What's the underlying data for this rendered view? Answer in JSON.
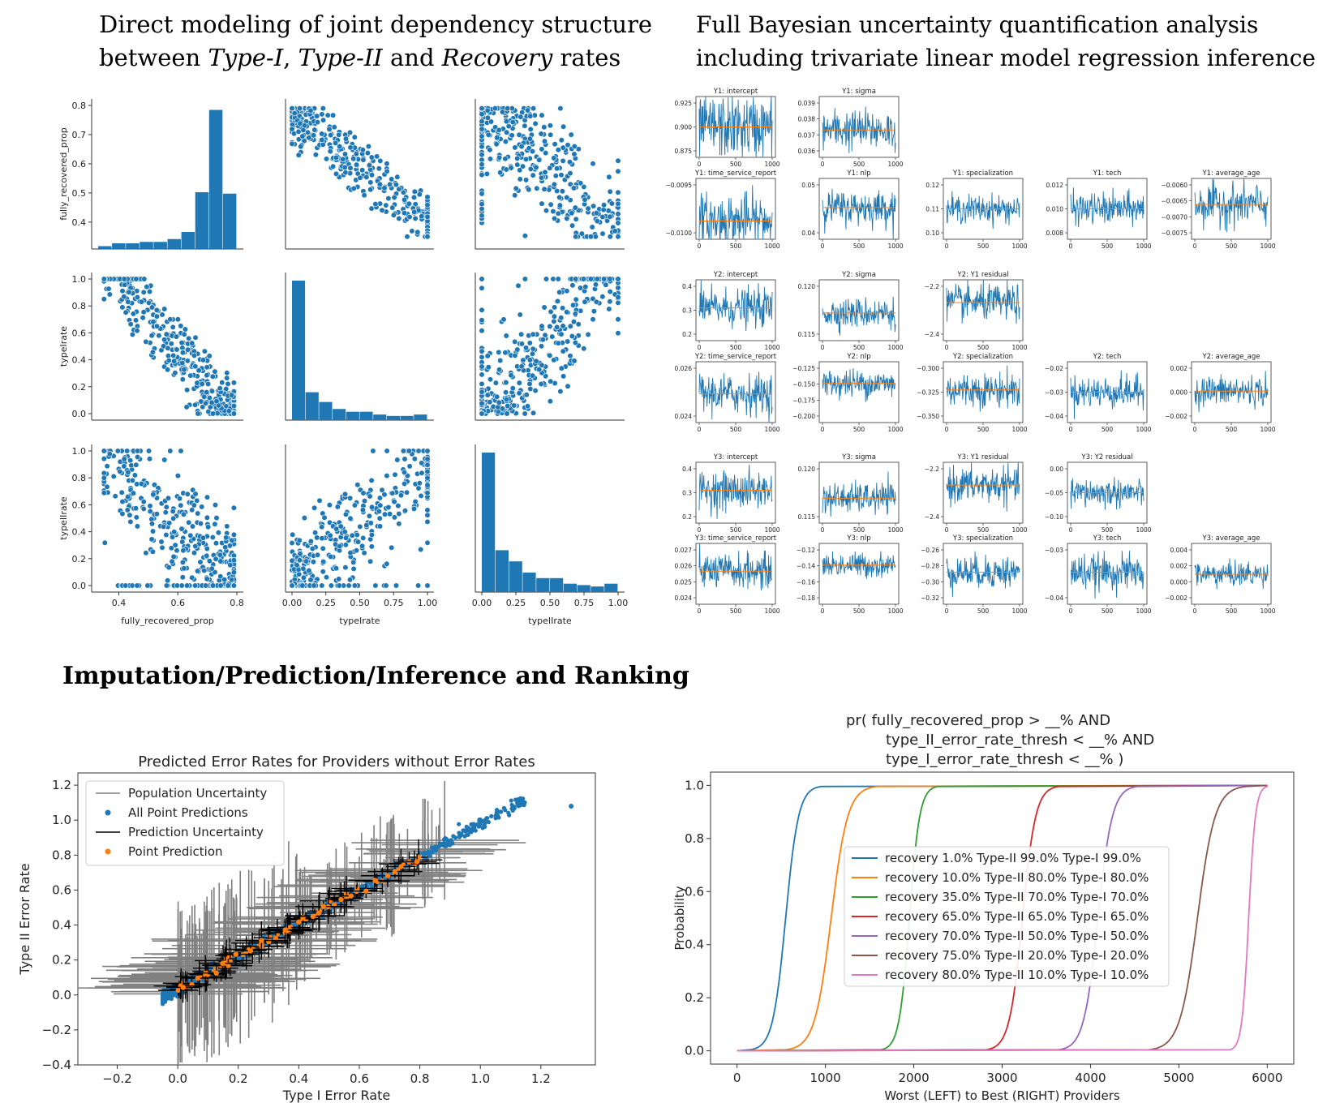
{
  "headings": {
    "top_left_line1": "Direct modeling of joint dependency structure",
    "top_left_line2_a": "between ",
    "top_left_line2_b": "Type-I",
    "top_left_line2_c": ", ",
    "top_left_line2_d": "Type-II",
    "top_left_line2_e": " and ",
    "top_left_line2_f": "Recovery",
    "top_left_line2_g": " rates",
    "top_right_line1": "Full Bayesian uncertainty quantification analysis",
    "top_right_line2": "including trivariate linear model regression inference",
    "bottom": "Imputation/Prediction/Inference and Ranking"
  },
  "colors": {
    "blue": "#1f77b4",
    "orange": "#ff7f0e",
    "green": "#2ca02c",
    "red": "#d62728",
    "purple": "#9467bd",
    "brown": "#8c564b",
    "pink": "#e377c2",
    "gray": "#808080",
    "black": "#000000"
  },
  "chart_data": [
    {
      "id": "pairplot",
      "type": "scatter",
      "variables": [
        "fully_recovered_prop",
        "typeIrate",
        "typeIIrate"
      ],
      "xlabels": [
        "fully_recovered_prop",
        "typeIrate",
        "typeIIrate"
      ],
      "ylabels": [
        "fully_recovered_prop",
        "typeIrate",
        "typeIIrate"
      ],
      "diag_type": "hist",
      "ranges": [
        [
          0.33,
          0.8
        ],
        [
          0,
          1.0
        ],
        [
          0,
          1.0
        ]
      ],
      "ticks": [
        [
          "0.4",
          "0.5",
          "0.6",
          "0.7",
          "0.8"
        ],
        [
          "0.0",
          "0.2",
          "0.4",
          "0.6",
          "0.8",
          "1.0"
        ],
        [
          "0.0",
          "0.2",
          "0.4",
          "0.6",
          "0.8",
          "1.0"
        ]
      ],
      "xticks": [
        [
          "0.4",
          "0.6",
          "0.8"
        ],
        [
          "0.00",
          "0.25",
          "0.50",
          "0.75",
          "1.00"
        ],
        [
          "0.00",
          "0.25",
          "0.50",
          "0.75",
          "1.00"
        ]
      ],
      "hist_recovered": [
        0.02,
        0.04,
        0.04,
        0.05,
        0.05,
        0.07,
        0.12,
        0.4,
        0.98,
        0.39
      ],
      "hist_type1": [
        1.0,
        0.2,
        0.13,
        0.08,
        0.06,
        0.06,
        0.04,
        0.03,
        0.03,
        0.04
      ],
      "hist_type2": [
        1.0,
        0.3,
        0.22,
        0.14,
        0.1,
        0.1,
        0.06,
        0.05,
        0.04,
        0.06
      ]
    },
    {
      "id": "trace_plots",
      "type": "line",
      "x_ticks": [
        "0",
        "500",
        "1000"
      ],
      "groups": [
        {
          "row1": [
            {
              "title": "Y1: intercept",
              "yticks": [
                "0.925",
                "0.900",
                "0.875"
              ],
              "center": 0.9,
              "spread": 0.045,
              "ylim": [
                0.86,
                0.94
              ]
            },
            {
              "title": "Y1: sigma",
              "yticks": [
                "0.039",
                "0.038",
                "0.037",
                "0.036"
              ],
              "center": 0.0373,
              "spread": 0.0015,
              "ylim": [
                0.0355,
                0.0395
              ]
            }
          ],
          "row2": [
            {
              "title": "Y1: time_service_report",
              "yticks": [
                "−0.0095",
                "−0.0100"
              ],
              "center": -0.01,
              "spread": 0.0005,
              "ylim": [
                -0.0103,
                -0.0093
              ]
            },
            {
              "title": "Y1: nlp",
              "yticks": [
                "0.05",
                "0.04"
              ],
              "center": 0.049,
              "spread": 0.007,
              "ylim": [
                0.037,
                0.06
              ]
            },
            {
              "title": "Y1: specialization",
              "yticks": [
                "0.12",
                "0.11",
                "0.10"
              ],
              "center": 0.11,
              "spread": 0.006,
              "ylim": [
                0.098,
                0.122
              ]
            },
            {
              "title": "Y1: tech",
              "yticks": [
                "0.012",
                "0.010",
                "0.008"
              ],
              "center": 0.0105,
              "spread": 0.0017,
              "ylim": [
                0.0075,
                0.0135
              ]
            },
            {
              "title": "Y1: average_age",
              "yticks": [
                "−0.0060",
                "−0.0065",
                "−0.0070",
                "−0.0075"
              ],
              "center": -0.0066,
              "spread": 0.0008,
              "ylim": [
                -0.0078,
                -0.0057
              ]
            }
          ]
        },
        {
          "row1": [
            {
              "title": "Y2: intercept",
              "yticks": [
                "0.4",
                "0.3",
                "0.2"
              ],
              "center": 0.31,
              "spread": 0.09,
              "ylim": [
                0.17,
                0.43
              ]
            },
            {
              "title": "Y2: sigma",
              "yticks": [
                "0.120",
                "0.115"
              ],
              "center": 0.117,
              "spread": 0.003,
              "ylim": [
                0.112,
                0.123
              ]
            },
            {
              "title": "Y2: Y1 residual",
              "yticks": [
                "−2.2",
                "−2.4"
              ],
              "center": -2.2,
              "spread": 0.13,
              "ylim": [
                -2.45,
                -2.05
              ]
            }
          ],
          "row2": [
            {
              "title": "Y2: time_service_report",
              "yticks": [
                "0.026",
                "0.024"
              ],
              "center": 0.0249,
              "spread": 0.0013,
              "ylim": [
                0.0232,
                0.0268
              ]
            },
            {
              "title": "Y2: nlp",
              "yticks": [
                "−0.125",
                "−0.150",
                "−0.175",
                "−0.200"
              ],
              "center": -0.148,
              "spread": 0.022,
              "ylim": [
                -0.202,
                -0.118
              ]
            },
            {
              "title": "Y2: specialization",
              "yticks": [
                "−0.300",
                "−0.325",
                "−0.350"
              ],
              "center": -0.322,
              "spread": 0.025,
              "ylim": [
                -0.365,
                -0.285
              ]
            },
            {
              "title": "Y2: tech",
              "yticks": [
                "−0.02",
                "−0.03",
                "−0.04"
              ],
              "center": -0.031,
              "spread": 0.007,
              "ylim": [
                -0.043,
                -0.019
              ]
            },
            {
              "title": "Y2: average_age",
              "yticks": [
                "0.002",
                "0.000",
                "−0.002"
              ],
              "center": 0.0003,
              "spread": 0.0017,
              "ylim": [
                -0.0028,
                0.0032
              ]
            }
          ]
        },
        {
          "row1": [
            {
              "title": "Y3: intercept",
              "yticks": [
                "0.4",
                "0.3",
                "0.2"
              ],
              "center": 0.31,
              "spread": 0.09,
              "ylim": [
                0.17,
                0.43
              ]
            },
            {
              "title": "Y3: sigma",
              "yticks": [
                "0.120",
                "0.115"
              ],
              "center": 0.1165,
              "spread": 0.003,
              "ylim": [
                0.112,
                0.123
              ]
            },
            {
              "title": "Y3: Y1 residual",
              "yticks": [
                "−2.2",
                "−2.4"
              ],
              "center": -2.2,
              "spread": 0.13,
              "ylim": [
                -2.45,
                -2.05
              ]
            },
            {
              "title": "Y3: Y2 residual",
              "yticks": [
                "0.00",
                "−0.05",
                "−0.10"
              ],
              "center": -0.055,
              "spread": 0.035,
              "ylim": [
                -0.12,
                0.01
              ]
            }
          ],
          "row2": [
            {
              "title": "Y3: time_service_report",
              "yticks": [
                "0.027",
                "0.026",
                "0.025",
                "0.024"
              ],
              "center": 0.0257,
              "spread": 0.0011,
              "ylim": [
                0.0238,
                0.0273
              ]
            },
            {
              "title": "Y3: nlp",
              "yticks": [
                "−0.12",
                "−0.14",
                "−0.16",
                "−0.18"
              ],
              "center": -0.14,
              "spread": 0.016,
              "ylim": [
                -0.185,
                -0.115
              ]
            },
            {
              "title": "Y3: specialization",
              "yticks": [
                "−0.26",
                "−0.28",
                "−0.30",
                "−0.32"
              ],
              "center": -0.288,
              "spread": 0.022,
              "ylim": [
                -0.327,
                -0.253
              ]
            },
            {
              "title": "Y3: tech",
              "yticks": [
                "−0.03",
                "−0.04"
              ],
              "center": -0.034,
              "spread": 0.006,
              "ylim": [
                -0.044,
                -0.025
              ]
            },
            {
              "title": "Y3: average_age",
              "yticks": [
                "0.004",
                "0.002",
                "0.000",
                "−0.002"
              ],
              "center": 0.0007,
              "spread": 0.0016,
              "ylim": [
                -0.0028,
                0.0043
              ]
            }
          ]
        }
      ]
    },
    {
      "id": "predicted_error_rates",
      "type": "scatter",
      "title": "Predicted Error Rates for Providers without Error Rates",
      "xlabel": "Type I Error Rate",
      "ylabel": "Type II Error Rate",
      "xlim": [
        -0.33,
        1.38
      ],
      "ylim": [
        -0.4,
        1.27
      ],
      "xticks": [
        "−0.2",
        "0.0",
        "0.2",
        "0.4",
        "0.6",
        "0.8",
        "1.0",
        "1.2"
      ],
      "yticks": [
        "−0.4",
        "−0.2",
        "0.0",
        "0.2",
        "0.4",
        "0.6",
        "0.8",
        "1.0",
        "1.2"
      ],
      "legend": [
        {
          "label": "Population Uncertainty",
          "kind": "line",
          "color": "gray"
        },
        {
          "label": "All Point Predictions",
          "kind": "dot",
          "color": "blue"
        },
        {
          "label": "Prediction Uncertainty",
          "kind": "line",
          "color": "black"
        },
        {
          "label": "Point Prediction",
          "kind": "dot",
          "color": "orange"
        }
      ],
      "legend_position": "upper left",
      "outlier_point": [
        1.3,
        1.08
      ],
      "trend": {
        "slope": 0.95,
        "intercept": 0.03,
        "x_range": [
          -0.05,
          1.15
        ]
      }
    },
    {
      "id": "ranking_probability",
      "type": "line",
      "title_lines": [
        "pr(  fully_recovered_prop > __%         AND",
        "type_II_error_rate_thresh < __% AND",
        "type_I_error_rate_thresh < __% )"
      ],
      "xlabel": "Worst (LEFT) to Best (RIGHT) Providers",
      "ylabel": "Probability",
      "xlim": [
        -300,
        6300
      ],
      "ylim": [
        -0.05,
        1.05
      ],
      "xticks": [
        "0",
        "1000",
        "2000",
        "3000",
        "4000",
        "5000",
        "6000"
      ],
      "yticks": [
        "0.0",
        "0.2",
        "0.4",
        "0.6",
        "0.8",
        "1.0"
      ],
      "legend_position": "center left",
      "series": [
        {
          "name": "recovery 1.0% Type-II 99.0% Type-I 99.0%",
          "color": "blue",
          "start": 150,
          "end": 950
        },
        {
          "name": "recovery 10.0% Type-II 80.0% Type-I 80.0%",
          "color": "orange",
          "start": 550,
          "end": 1580
        },
        {
          "name": "recovery 35.0% Type-II 70.0% Type-I 70.0%",
          "color": "green",
          "start": 1630,
          "end": 2270
        },
        {
          "name": "recovery 65.0% Type-II 65.0% Type-I 65.0%",
          "color": "red",
          "start": 2820,
          "end": 3640
        },
        {
          "name": "recovery 70.0% Type-II 50.0% Type-I 50.0%",
          "color": "purple",
          "start": 3640,
          "end": 4530
        },
        {
          "name": "recovery 75.0% Type-II 20.0% Type-I 20.0%",
          "color": "brown",
          "start": 4660,
          "end": 5760
        },
        {
          "name": "recovery 80.0% Type-II 10.0% Type-I 10.0%",
          "color": "pink",
          "start": 5580,
          "end": 6000
        }
      ]
    }
  ]
}
